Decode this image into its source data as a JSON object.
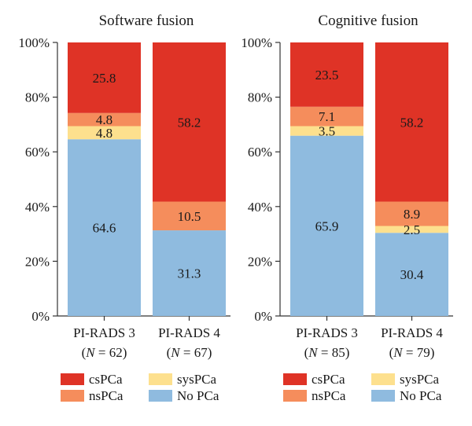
{
  "chart_data": [
    {
      "type": "bar",
      "stacked": true,
      "title": "Software fusion",
      "ylim": [
        0,
        100
      ],
      "yticks": [
        "0%",
        "20%",
        "40%",
        "60%",
        "80%",
        "100%"
      ],
      "categories": [
        {
          "line1": "PI-RADS 3",
          "line2_var": "N",
          "line2_rest": " = 62)"
        },
        {
          "line1": "PI-RADS 4",
          "line2_var": "N",
          "line2_rest": " = 67)"
        }
      ],
      "series": [
        {
          "name": "No PCa",
          "color": "#8fbbdf",
          "values": [
            64.6,
            31.3
          ],
          "labels": [
            "64.6",
            "31.3"
          ]
        },
        {
          "name": "sysPCa",
          "color": "#fde08e",
          "values": [
            4.8,
            0
          ],
          "labels": [
            "4.8",
            ""
          ]
        },
        {
          "name": "nsPCa",
          "color": "#f58d5c",
          "values": [
            4.8,
            10.5
          ],
          "labels": [
            "4.8",
            "10.5"
          ]
        },
        {
          "name": "csPCa",
          "color": "#df3326",
          "values": [
            25.8,
            58.2
          ],
          "labels": [
            "25.8",
            "58.2"
          ]
        }
      ]
    },
    {
      "type": "bar",
      "stacked": true,
      "title": "Cognitive fusion",
      "ylim": [
        0,
        100
      ],
      "yticks": [
        "0%",
        "20%",
        "40%",
        "60%",
        "80%",
        "100%"
      ],
      "categories": [
        {
          "line1": "PI-RADS 3",
          "line2_var": "N",
          "line2_rest": " = 85)"
        },
        {
          "line1": "PI-RADS 4",
          "line2_var": "N",
          "line2_rest": " = 79)"
        }
      ],
      "series": [
        {
          "name": "No PCa",
          "color": "#8fbbdf",
          "values": [
            65.9,
            30.4
          ],
          "labels": [
            "65.9",
            "30.4"
          ]
        },
        {
          "name": "sysPCa",
          "color": "#fde08e",
          "values": [
            3.5,
            2.5
          ],
          "labels": [
            "3.5",
            "2.5"
          ]
        },
        {
          "name": "nsPCa",
          "color": "#f58d5c",
          "values": [
            7.1,
            8.9
          ],
          "labels": [
            "7.1",
            "8.9"
          ]
        },
        {
          "name": "csPCa",
          "color": "#df3326",
          "values": [
            23.5,
            58.2
          ],
          "labels": [
            "23.5",
            "58.2"
          ]
        }
      ]
    }
  ],
  "legend": [
    {
      "name": "csPCa",
      "color": "#df3326"
    },
    {
      "name": "sysPCa",
      "color": "#fde08e"
    },
    {
      "name": "nsPCa",
      "color": "#f58d5c"
    },
    {
      "name": "No PCa",
      "color": "#8fbbdf"
    }
  ]
}
